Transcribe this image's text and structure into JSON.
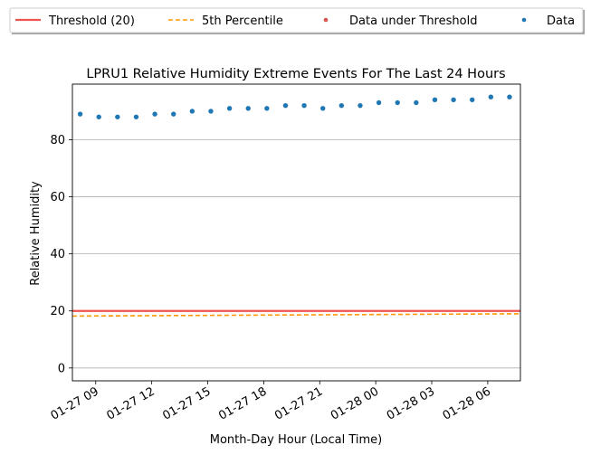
{
  "chart_data": {
    "type": "scatter",
    "title": "LPRU1 Relative Humidity Extreme Events For The Last 24 Hours",
    "xlabel": "Month-Day Hour (Local Time)",
    "ylabel": "Relative Humidity",
    "ylim": [
      -4.5,
      99.5
    ],
    "yticks": [
      0,
      20,
      40,
      60,
      80
    ],
    "xlim": [
      "01-27 07:45",
      "01-28 07:45"
    ],
    "xticks": [
      "01-27 09",
      "01-27 12",
      "01-27 15",
      "01-27 18",
      "01-27 21",
      "01-28 00",
      "01-28 03",
      "01-28 06"
    ],
    "grid": "horizontal",
    "legend_position": "top",
    "legend": {
      "threshold": "Threshold (20)",
      "percentile": "5th Percentile",
      "under": "Data under Threshold",
      "data": "Data"
    },
    "threshold": 20,
    "percentile_line": {
      "x": [
        "01-27 07:45",
        "01-28 07:45"
      ],
      "y": [
        18.2,
        19.0
      ]
    },
    "data_under_threshold": [],
    "series": [
      {
        "name": "Data",
        "x": [
          "01-27 08:10",
          "01-27 09:10",
          "01-27 10:10",
          "01-27 11:10",
          "01-27 12:10",
          "01-27 13:10",
          "01-27 14:10",
          "01-27 15:10",
          "01-27 16:10",
          "01-27 17:10",
          "01-27 18:10",
          "01-27 19:10",
          "01-27 20:10",
          "01-27 21:10",
          "01-27 22:10",
          "01-27 23:10",
          "01-28 00:10",
          "01-28 01:10",
          "01-28 02:10",
          "01-28 03:10",
          "01-28 04:10",
          "01-28 05:10",
          "01-28 06:10",
          "01-28 07:10"
        ],
        "y": [
          89,
          88,
          88,
          88,
          89,
          89,
          90,
          90,
          91,
          91,
          91,
          92,
          92,
          91,
          92,
          92,
          93,
          93,
          93,
          94,
          94,
          94,
          95,
          95
        ]
      }
    ],
    "colors": {
      "threshold": "#ef5350",
      "percentile": "#ff9800",
      "under": "#d9534f",
      "data": "#1f77b4",
      "grid": "#b0b0b0"
    }
  }
}
